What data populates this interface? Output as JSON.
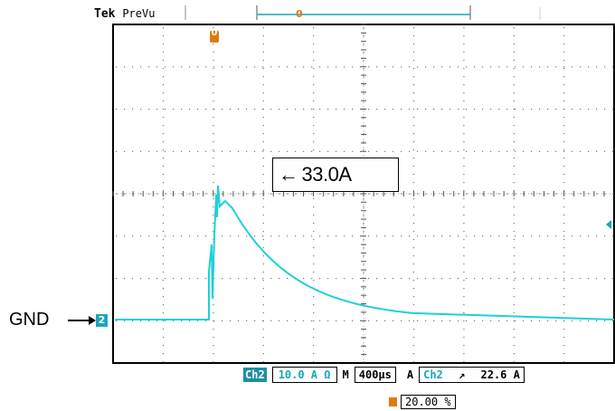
{
  "header": {
    "brand": "Tek",
    "mode": "PreVu",
    "trigger_pos_marker": "0"
  },
  "screen": {
    "grid_divisions_x": 10,
    "grid_divisions_y": 8,
    "trace_color": "#1fd0d8",
    "ground_label": "GND",
    "channel_marker": "2",
    "peak_annotation": "33.0A"
  },
  "status_bar": {
    "channel_tag": "Ch2",
    "vertical_scale": "10.0 A",
    "bandwidth_icon": "ohm-icon",
    "timebase_prefix": "M",
    "timebase": "400µs",
    "trigger_mode": "A",
    "trigger_channel": "Ch2",
    "trigger_slope_icon": "rising-edge-icon",
    "trigger_level": "22.6 A",
    "trigger_position": "20.00 %"
  },
  "colors": {
    "trace": "#1fd0d8",
    "accent_orange": "#e07a10",
    "channel_cyan": "#17a7b8"
  }
}
